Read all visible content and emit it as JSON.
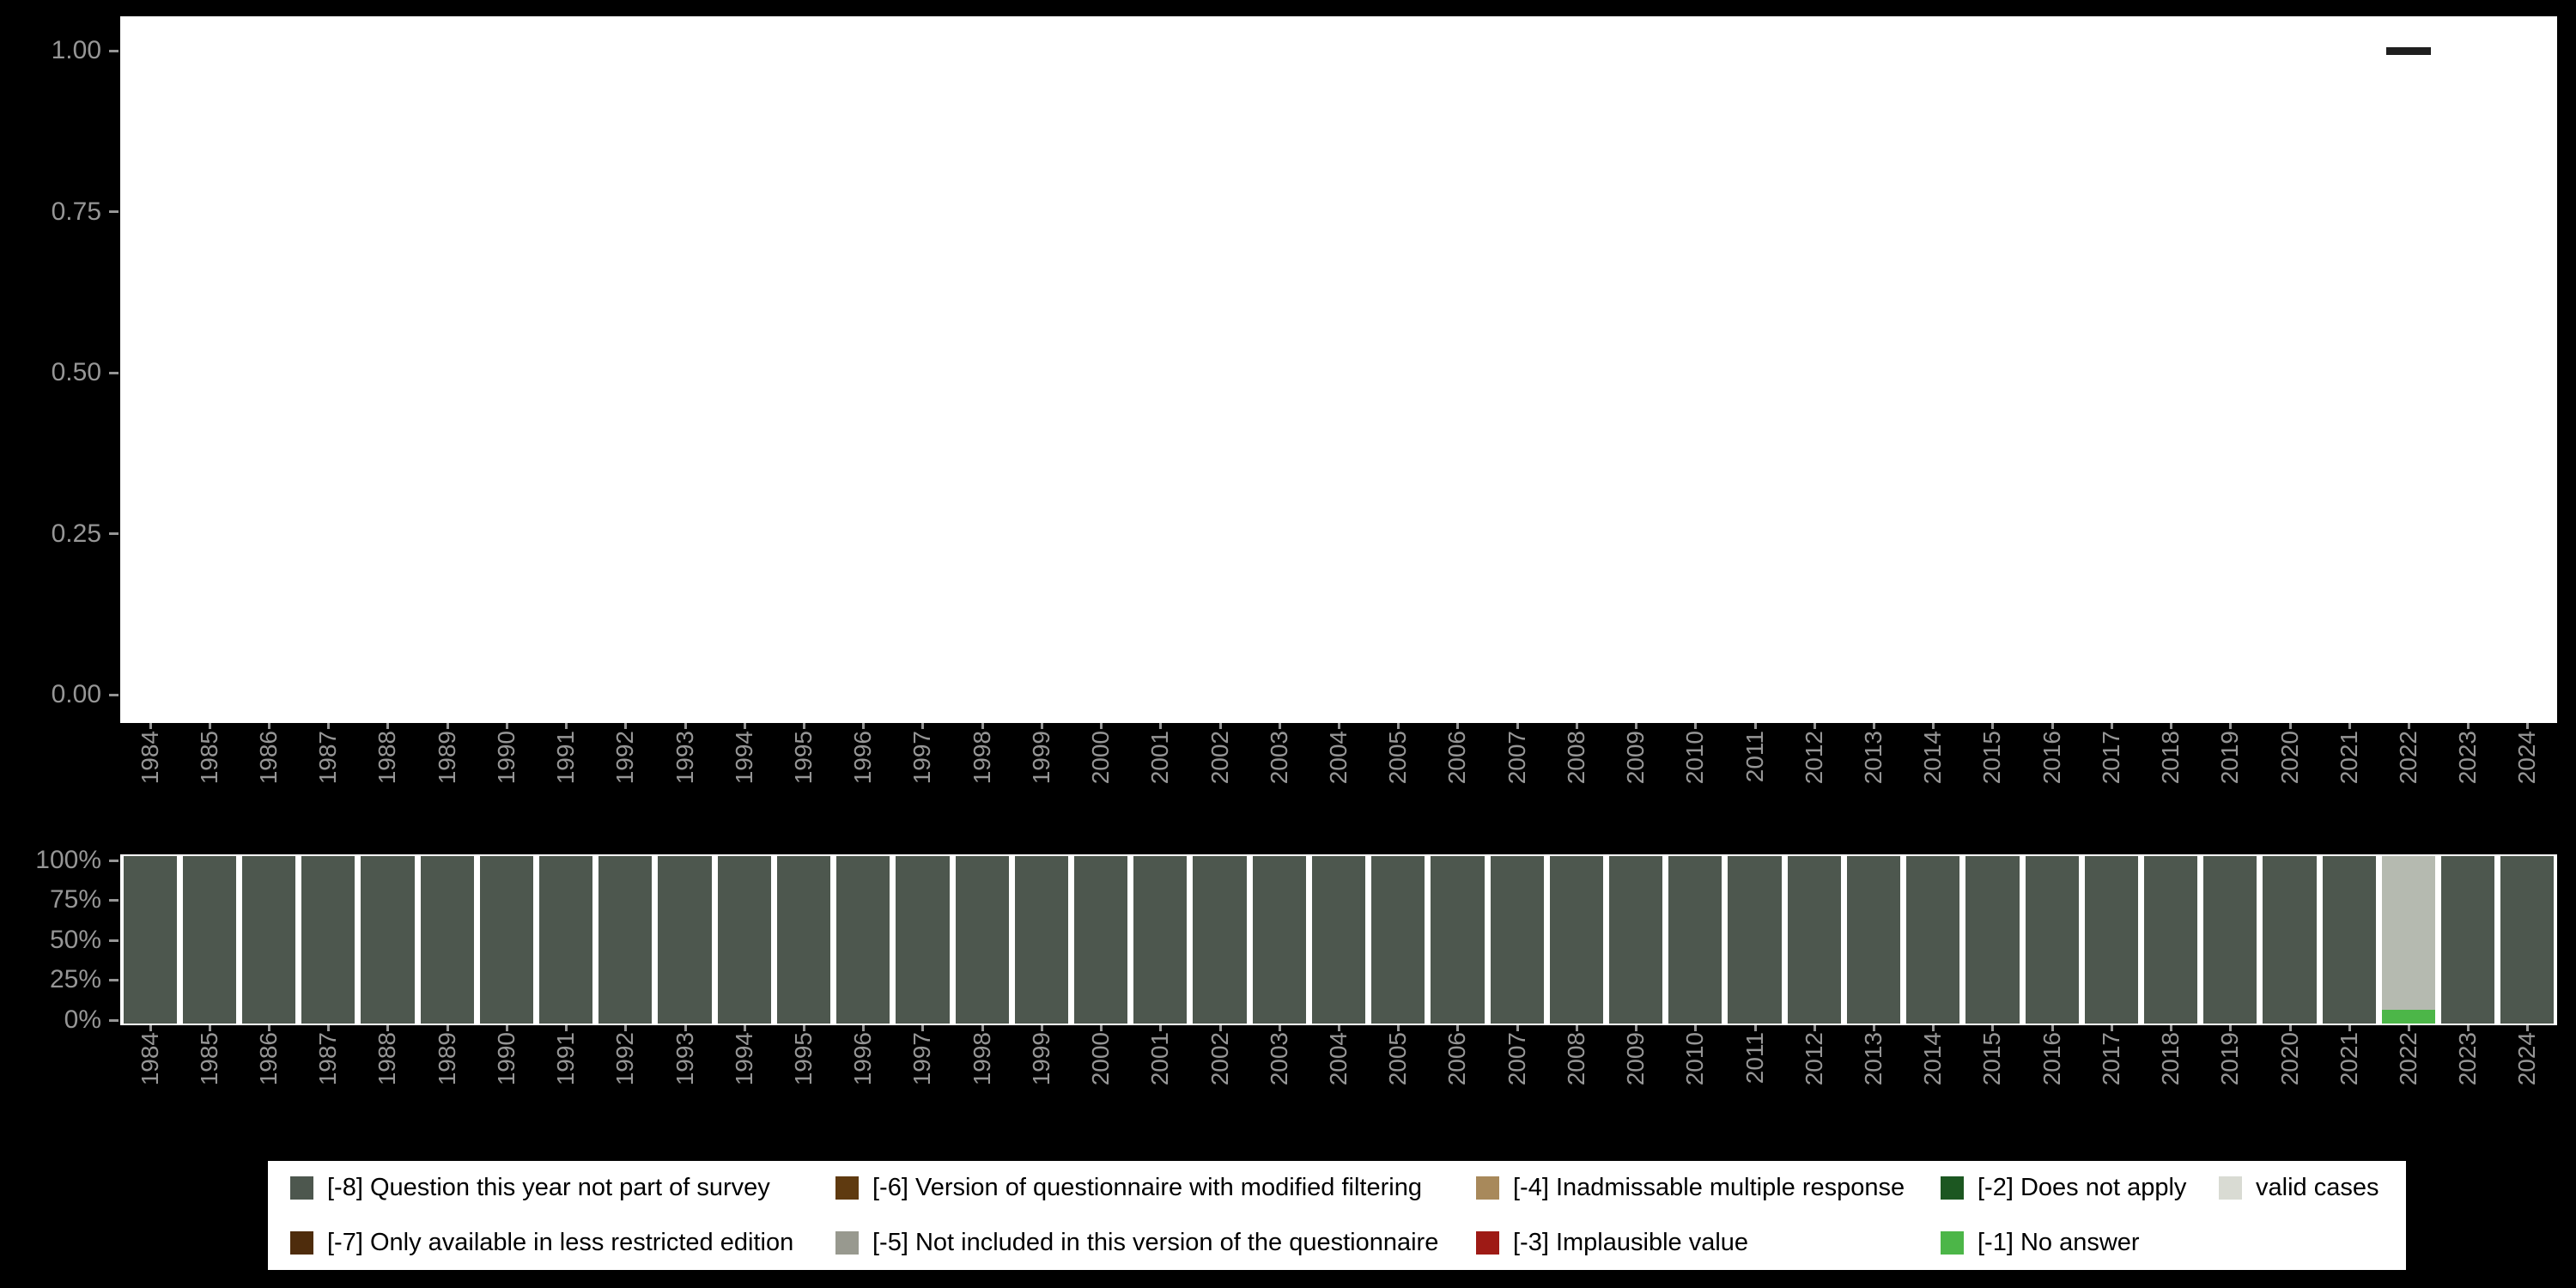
{
  "axes": {
    "top_yticks": [
      "1.00",
      "0.75",
      "0.50",
      "0.25",
      "0.00"
    ],
    "bottom_yticks": [
      "100%",
      "75%",
      "50%",
      "25%",
      "0%"
    ]
  },
  "colors": {
    "background": "#000000",
    "panel": "#ffffff",
    "axis_text": "#969696",
    "marker": "#1f1f1f",
    "legend_background": "#ffffff"
  },
  "legend": {
    "items": [
      {
        "label": "[-8] Question this year not part of survey",
        "color": "#4d574e"
      },
      {
        "label": "[-7] Only available in less restricted edition",
        "color": "#4e2c0c"
      },
      {
        "label": "[-6] Version of questionnaire with modified filtering",
        "color": "#5f3a10"
      },
      {
        "label": "[-5] Not included in this version of the questionnaire",
        "color": "#98998f"
      },
      {
        "label": "[-4] Inadmissable multiple response",
        "color": "#a8895b"
      },
      {
        "label": "[-3] Implausible value",
        "color": "#9e1a15"
      },
      {
        "label": "[-2] Does not apply",
        "color": "#1c5721"
      },
      {
        "label": "[-1] No answer",
        "color": "#4cb648"
      },
      {
        "label": "valid cases",
        "color": "#d9dbd3"
      }
    ]
  },
  "chart_data": [
    {
      "type": "scatter",
      "title": "",
      "x": [
        "1984",
        "1985",
        "1986",
        "1987",
        "1988",
        "1989",
        "1990",
        "1991",
        "1992",
        "1993",
        "1994",
        "1995",
        "1996",
        "1997",
        "1998",
        "1999",
        "2000",
        "2001",
        "2002",
        "2003",
        "2004",
        "2005",
        "2006",
        "2007",
        "2008",
        "2009",
        "2010",
        "2011",
        "2012",
        "2013",
        "2014",
        "2015",
        "2016",
        "2017",
        "2018",
        "2019",
        "2020",
        "2021",
        "2022",
        "2023",
        "2024"
      ],
      "ylim": [
        0,
        1
      ],
      "yticks": [
        0.0,
        0.25,
        0.5,
        0.75,
        1.0
      ],
      "grid": false,
      "points": [
        {
          "x": "2022",
          "y": 1.0
        }
      ],
      "marker": "horizontal-dash",
      "marker_color": "#1f1f1f"
    },
    {
      "type": "bar",
      "stacked": true,
      "percent": true,
      "title": "",
      "categories": [
        "1984",
        "1985",
        "1986",
        "1987",
        "1988",
        "1989",
        "1990",
        "1991",
        "1992",
        "1993",
        "1994",
        "1995",
        "1996",
        "1997",
        "1998",
        "1999",
        "2000",
        "2001",
        "2002",
        "2003",
        "2004",
        "2005",
        "2006",
        "2007",
        "2008",
        "2009",
        "2010",
        "2011",
        "2012",
        "2013",
        "2014",
        "2015",
        "2016",
        "2017",
        "2018",
        "2019",
        "2020",
        "2021",
        "2022",
        "2023",
        "2024"
      ],
      "yticks": [
        "100%",
        "75%",
        "50%",
        "25%",
        "0%"
      ],
      "ylim": [
        0,
        100
      ],
      "legend_position": "bottom",
      "series": [
        {
          "name": "[-8] Question this year not part of survey",
          "color": "#4d574e",
          "values": [
            100,
            100,
            100,
            100,
            100,
            100,
            100,
            100,
            100,
            100,
            100,
            100,
            100,
            100,
            100,
            100,
            100,
            100,
            100,
            100,
            100,
            100,
            100,
            100,
            100,
            100,
            100,
            100,
            100,
            100,
            100,
            100,
            100,
            100,
            100,
            100,
            100,
            100,
            0,
            100,
            100
          ]
        },
        {
          "name": "[-1] No answer",
          "color": "#4cb648",
          "values": [
            0,
            0,
            0,
            0,
            0,
            0,
            0,
            0,
            0,
            0,
            0,
            0,
            0,
            0,
            0,
            0,
            0,
            0,
            0,
            0,
            0,
            0,
            0,
            0,
            0,
            0,
            0,
            0,
            0,
            0,
            0,
            0,
            0,
            0,
            0,
            0,
            0,
            0,
            8,
            0,
            0
          ]
        },
        {
          "name": "valid cases",
          "color": "#b5bab0",
          "values": [
            0,
            0,
            0,
            0,
            0,
            0,
            0,
            0,
            0,
            0,
            0,
            0,
            0,
            0,
            0,
            0,
            0,
            0,
            0,
            0,
            0,
            0,
            0,
            0,
            0,
            0,
            0,
            0,
            0,
            0,
            0,
            0,
            0,
            0,
            0,
            0,
            0,
            0,
            92,
            0,
            0
          ]
        }
      ]
    }
  ]
}
